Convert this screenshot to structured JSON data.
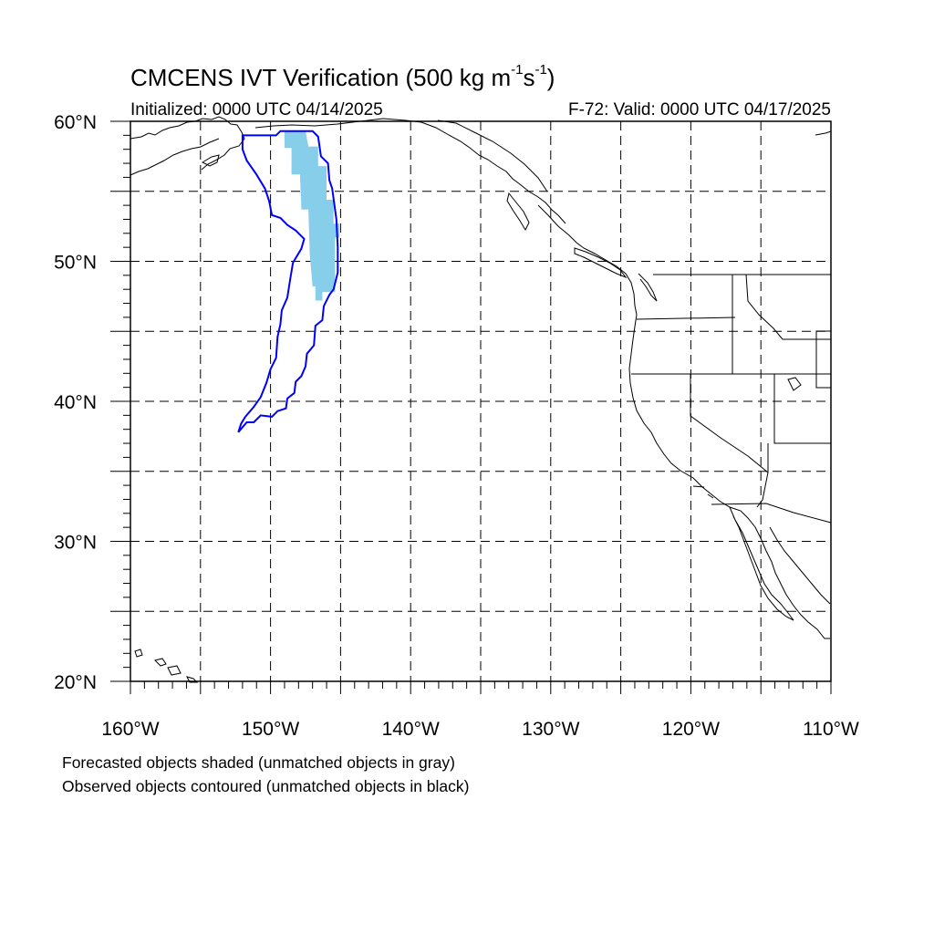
{
  "title": {
    "main": "CMCENS IVT Verification (500 kg m",
    "exp1": "-1",
    "mid": "s",
    "exp2": "-1",
    "end": ")"
  },
  "subtitle_left": "Initialized: 0000 UTC 04/14/2025",
  "subtitle_right": "F-72: Valid: 0000 UTC 04/17/2025",
  "notes": [
    "Forecasted objects shaded (unmatched objects in gray)",
    "Observed objects contoured (unmatched objects in black)"
  ],
  "map": {
    "lon_range": [
      -160,
      -110
    ],
    "lat_range": [
      20,
      60
    ],
    "lon_ticks": [
      {
        "value": -160,
        "label": "160°W"
      },
      {
        "value": -150,
        "label": "150°W"
      },
      {
        "value": -140,
        "label": "140°W"
      },
      {
        "value": -130,
        "label": "130°W"
      },
      {
        "value": -120,
        "label": "120°W"
      },
      {
        "value": -110,
        "label": "110°W"
      }
    ],
    "lat_ticks": [
      {
        "value": 20,
        "label": "20°N"
      },
      {
        "value": 30,
        "label": "30°N"
      },
      {
        "value": 40,
        "label": "40°N"
      },
      {
        "value": 50,
        "label": "50°N"
      },
      {
        "value": 60,
        "label": "60°N"
      }
    ],
    "grid_step_deg": 5,
    "colors": {
      "forecast_fill": "#87ceeb",
      "observed_contour": "#0000ff",
      "coastline": "#000000",
      "grid": "#000000"
    },
    "forecast_object": [
      [
        -149.0,
        59.3
      ],
      [
        -147.5,
        59.3
      ],
      [
        -147.3,
        58.2
      ],
      [
        -146.6,
        58.2
      ],
      [
        -146.6,
        56.8
      ],
      [
        -146.0,
        56.8
      ],
      [
        -146.0,
        54.4
      ],
      [
        -145.5,
        54.4
      ],
      [
        -145.5,
        52.7
      ],
      [
        -145.1,
        52.7
      ],
      [
        -145.1,
        51.7
      ],
      [
        -145.4,
        51.7
      ],
      [
        -145.4,
        47.8
      ],
      [
        -146.3,
        47.8
      ],
      [
        -146.3,
        47.2
      ],
      [
        -146.8,
        47.2
      ],
      [
        -146.8,
        48.2
      ],
      [
        -147.0,
        48.2
      ],
      [
        -147.2,
        50.5
      ],
      [
        -147.3,
        53.7
      ],
      [
        -147.8,
        53.7
      ],
      [
        -147.9,
        56.2
      ],
      [
        -148.5,
        56.2
      ],
      [
        -148.5,
        58.1
      ],
      [
        -149.0,
        58.1
      ]
    ],
    "observed_object": [
      [
        -152.0,
        59.0
      ],
      [
        -149.6,
        59.0
      ],
      [
        -149.3,
        59.3
      ],
      [
        -147.0,
        59.3
      ],
      [
        -146.6,
        58.9
      ],
      [
        -146.4,
        57.5
      ],
      [
        -145.9,
        57.0
      ],
      [
        -145.8,
        55.8
      ],
      [
        -145.6,
        55.2
      ],
      [
        -145.3,
        53.0
      ],
      [
        -145.2,
        51.0
      ],
      [
        -145.2,
        49.2
      ],
      [
        -145.5,
        48.0
      ],
      [
        -145.8,
        47.6
      ],
      [
        -146.2,
        46.8
      ],
      [
        -146.3,
        45.8
      ],
      [
        -146.8,
        45.4
      ],
      [
        -146.9,
        44.0
      ],
      [
        -147.4,
        43.4
      ],
      [
        -147.5,
        42.5
      ],
      [
        -147.8,
        41.8
      ],
      [
        -148.2,
        41.4
      ],
      [
        -148.3,
        40.6
      ],
      [
        -148.8,
        40.2
      ],
      [
        -148.9,
        39.5
      ],
      [
        -149.5,
        39.3
      ],
      [
        -149.9,
        38.9
      ],
      [
        -150.7,
        39.0
      ],
      [
        -151.2,
        38.5
      ],
      [
        -151.7,
        38.5
      ],
      [
        -152.3,
        37.8
      ],
      [
        -152.1,
        38.4
      ],
      [
        -151.8,
        38.9
      ],
      [
        -151.2,
        39.6
      ],
      [
        -150.7,
        40.3
      ],
      [
        -150.3,
        41.3
      ],
      [
        -150.0,
        42.3
      ],
      [
        -149.6,
        43.1
      ],
      [
        -149.5,
        44.6
      ],
      [
        -149.3,
        45.5
      ],
      [
        -149.2,
        46.5
      ],
      [
        -148.8,
        47.4
      ],
      [
        -148.6,
        48.7
      ],
      [
        -148.4,
        49.9
      ],
      [
        -147.8,
        50.9
      ],
      [
        -147.6,
        51.6
      ],
      [
        -148.2,
        52.2
      ],
      [
        -148.8,
        52.6
      ],
      [
        -149.3,
        53.1
      ],
      [
        -149.9,
        53.3
      ],
      [
        -150.1,
        54.3
      ],
      [
        -150.4,
        55.2
      ],
      [
        -151.0,
        56.2
      ],
      [
        -151.7,
        57.2
      ],
      [
        -152.0,
        58.0
      ]
    ],
    "states_table": []
  }
}
